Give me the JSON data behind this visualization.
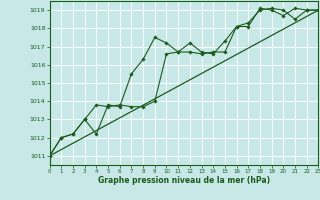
{
  "background_color": "#c8e8e8",
  "grid_color": "#ffffff",
  "line_color": "#1a5c1a",
  "marker_color": "#1a5c1a",
  "xlabel": "Graphe pression niveau de la mer (hPa)",
  "xlim": [
    0,
    23
  ],
  "ylim": [
    1010.5,
    1019.5
  ],
  "yticks": [
    1011,
    1012,
    1013,
    1014,
    1015,
    1016,
    1017,
    1018,
    1019
  ],
  "xticks": [
    0,
    1,
    2,
    3,
    4,
    5,
    6,
    7,
    8,
    9,
    10,
    11,
    12,
    13,
    14,
    15,
    16,
    17,
    18,
    19,
    20,
    21,
    22,
    23
  ],
  "series1": [
    [
      0,
      1011.0
    ],
    [
      1,
      1012.0
    ],
    [
      2,
      1012.2
    ],
    [
      3,
      1013.0
    ],
    [
      4,
      1012.2
    ],
    [
      5,
      1013.8
    ],
    [
      6,
      1013.7
    ],
    [
      7,
      1015.5
    ],
    [
      8,
      1016.3
    ],
    [
      9,
      1017.5
    ],
    [
      10,
      1017.2
    ],
    [
      11,
      1016.7
    ],
    [
      12,
      1017.2
    ],
    [
      13,
      1016.7
    ],
    [
      14,
      1016.6
    ],
    [
      15,
      1017.3
    ],
    [
      16,
      1018.1
    ],
    [
      17,
      1018.1
    ],
    [
      18,
      1019.1
    ],
    [
      19,
      1019.0
    ],
    [
      20,
      1018.7
    ],
    [
      21,
      1019.1
    ],
    [
      22,
      1019.0
    ],
    [
      23,
      1019.0
    ]
  ],
  "series2": [
    [
      0,
      1011.0
    ],
    [
      1,
      1012.0
    ],
    [
      2,
      1012.2
    ],
    [
      3,
      1013.0
    ],
    [
      4,
      1013.8
    ],
    [
      5,
      1013.7
    ],
    [
      6,
      1013.8
    ],
    [
      7,
      1013.7
    ],
    [
      8,
      1013.7
    ],
    [
      9,
      1014.0
    ],
    [
      10,
      1016.6
    ],
    [
      11,
      1016.7
    ],
    [
      12,
      1016.7
    ],
    [
      13,
      1016.6
    ],
    [
      14,
      1016.7
    ],
    [
      15,
      1016.7
    ],
    [
      16,
      1018.1
    ],
    [
      17,
      1018.3
    ],
    [
      18,
      1019.0
    ],
    [
      19,
      1019.1
    ],
    [
      20,
      1019.0
    ],
    [
      21,
      1018.5
    ],
    [
      22,
      1019.0
    ],
    [
      23,
      1019.0
    ]
  ],
  "series3_straight": [
    [
      0,
      1011.0
    ],
    [
      23,
      1019.0
    ]
  ]
}
